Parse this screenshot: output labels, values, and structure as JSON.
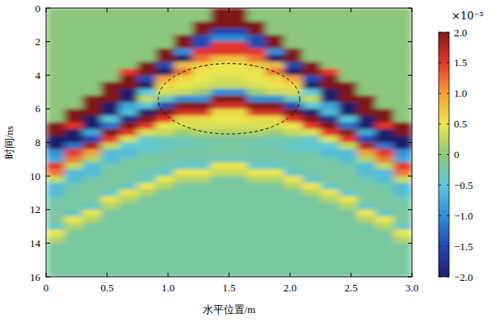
{
  "chart_data": {
    "type": "heatmap",
    "x_label": "水平位置/m",
    "y_label": "时间/ns",
    "xlim": [
      0,
      3
    ],
    "ylim": [
      0,
      16
    ],
    "xticks": [
      0,
      0.5,
      {
        "value": 1,
        "label": "1.0"
      },
      1.5,
      {
        "value": 2,
        "label": "2.0"
      },
      2.5,
      {
        "value": 3,
        "label": "3.0"
      }
    ],
    "yticks": [
      0,
      2,
      4,
      6,
      8,
      10,
      12,
      14,
      16
    ],
    "color_range": [
      -2,
      2
    ],
    "color_ticks": [
      {
        "value": 2,
        "label": "2.0"
      },
      1.5,
      {
        "value": 1,
        "label": "1.0"
      },
      0.5,
      0,
      {
        "value": -0.5,
        "label": "−0.5"
      },
      {
        "value": -1,
        "label": "−1.0"
      },
      {
        "value": -1.5,
        "label": "−1.5"
      },
      {
        "value": -2,
        "label": "−2.0"
      }
    ],
    "color_unit": "×10⁻³",
    "annotation_ellipse": {
      "x": 1.5,
      "y": 5.4,
      "rx": 0.58,
      "ry": 2.1
    },
    "cells": [
      [
        0,
        0,
        0,
        0,
        0,
        0,
        0,
        0,
        0,
        2,
        2,
        0,
        0,
        0,
        0,
        0,
        0,
        0,
        0,
        0
      ],
      [
        0,
        0,
        0,
        0,
        0,
        0,
        0,
        0,
        0,
        2,
        2,
        0,
        0,
        0,
        0,
        0,
        0,
        0,
        0,
        0
      ],
      [
        0,
        0,
        0,
        0,
        0,
        0,
        0,
        0,
        2,
        2,
        2,
        2,
        0,
        0,
        0,
        0,
        0,
        0,
        0,
        0
      ],
      [
        0,
        0,
        0,
        0,
        0,
        0,
        0,
        0,
        2,
        -1.5,
        -1.5,
        2,
        0,
        0,
        0,
        0,
        0,
        0,
        0,
        0
      ],
      [
        0,
        0,
        0,
        0,
        0,
        0,
        0,
        2,
        -1.5,
        -1,
        -1,
        -1.5,
        2,
        0,
        0,
        0,
        0,
        0,
        0,
        0
      ],
      [
        0,
        0,
        0,
        0,
        0,
        0,
        0,
        2,
        -1.5,
        1.5,
        1.5,
        -1.5,
        2,
        0,
        0,
        0,
        0,
        0,
        0,
        0
      ],
      [
        0,
        0,
        0,
        0,
        0,
        0,
        2,
        -1,
        1.5,
        1.5,
        1.5,
        1.5,
        -1,
        2,
        0,
        0,
        0,
        0,
        0,
        0
      ],
      [
        0,
        0,
        0,
        0,
        0,
        0,
        2,
        -2,
        1.2,
        0.8,
        0.8,
        1.2,
        -2,
        2,
        0,
        0,
        0,
        0,
        0,
        0
      ],
      [
        0,
        0,
        0,
        0,
        0,
        2,
        -1.5,
        0.8,
        0.7,
        0.5,
        0.5,
        0.7,
        0.8,
        -1.5,
        2,
        0,
        0,
        0,
        0,
        0
      ],
      [
        0,
        0,
        0,
        0,
        1.5,
        2,
        -2,
        1.2,
        0.5,
        0.5,
        0.5,
        0.5,
        1.2,
        -2,
        2,
        1.5,
        0,
        0,
        0,
        0
      ],
      [
        0,
        0,
        0,
        0,
        2,
        -1.5,
        1,
        0.6,
        0.5,
        0.4,
        0.4,
        0.5,
        0.6,
        1,
        -1.5,
        2,
        0,
        0,
        0,
        0
      ],
      [
        0,
        0,
        0,
        2,
        2,
        -2,
        0.6,
        0.5,
        0.4,
        0.3,
        0.3,
        0.4,
        0.5,
        0.6,
        -2,
        2,
        2,
        0,
        0,
        0
      ],
      [
        0,
        0,
        0,
        2,
        -2,
        -0.5,
        0.4,
        0.3,
        0.1,
        -1,
        -1,
        0.1,
        0.3,
        0.4,
        -0.5,
        -2,
        2,
        0,
        0,
        0
      ],
      [
        0,
        0,
        2,
        2,
        -2,
        0.3,
        -0.3,
        -1,
        -1,
        2,
        2,
        -1,
        -1,
        -0.3,
        0.3,
        -2,
        2,
        2,
        0,
        0
      ],
      [
        0,
        0,
        2,
        -2,
        -0.8,
        -0.5,
        -1.5,
        2,
        2,
        1.6,
        1.6,
        2,
        2,
        -1.5,
        -0.5,
        -0.8,
        -2,
        2,
        0,
        0
      ],
      [
        0,
        2,
        2,
        -2,
        -0.6,
        -2,
        2,
        1.6,
        1.6,
        0.6,
        0.6,
        1.6,
        1.6,
        2,
        -2,
        -0.6,
        -2,
        2,
        2,
        0
      ],
      [
        0,
        2,
        -2,
        -0.5,
        -1.8,
        2,
        1.5,
        0.6,
        0.6,
        0.5,
        0.5,
        0.6,
        0.6,
        1.5,
        2,
        -1.8,
        -0.5,
        -2,
        2,
        0
      ],
      [
        2,
        1.5,
        -2,
        -1.2,
        2,
        1.5,
        0.5,
        0.4,
        0.4,
        0.4,
        0.4,
        0.4,
        0.4,
        0.5,
        1.5,
        2,
        -1.2,
        -2,
        1.5,
        2
      ],
      [
        2,
        -2,
        -0.8,
        2,
        1.5,
        0.4,
        0.3,
        0.1,
        0.2,
        0.2,
        0.2,
        0.2,
        0.1,
        0.3,
        0.4,
        1.5,
        2,
        -0.8,
        -2,
        2
      ],
      [
        -2,
        -2,
        -1.5,
        1.5,
        0.4,
        -0.4,
        -0.3,
        -0.3,
        -0.2,
        -0.2,
        -0.2,
        -0.2,
        -0.3,
        -0.3,
        -0.4,
        0.4,
        1.5,
        -1.5,
        -2,
        -2
      ],
      [
        -2,
        -1.2,
        1.8,
        0.3,
        -0.5,
        -0.5,
        -0.4,
        -0.3,
        -0.3,
        -0.2,
        -0.2,
        -0.3,
        -0.3,
        -0.4,
        -0.5,
        -0.5,
        0.3,
        1.8,
        -1.2,
        -2
      ],
      [
        -1,
        1.5,
        1,
        -0.6,
        -0.6,
        -0.3,
        -0.3,
        -0.2,
        -0.2,
        -0.2,
        -0.2,
        -0.2,
        -0.2,
        -0.3,
        -0.3,
        -0.6,
        -0.6,
        1,
        1.5,
        -1
      ],
      [
        -0.8,
        1.2,
        0.2,
        -0.6,
        -0.3,
        -0.2,
        -0.2,
        -0.3,
        -0.3,
        -0.3,
        -0.3,
        -0.3,
        -0.3,
        -0.2,
        -0.2,
        -0.3,
        -0.6,
        0.2,
        1.2,
        -0.8
      ],
      [
        1.5,
        0.3,
        -0.6,
        -0.3,
        -0.2,
        -0.2,
        -0.3,
        -0.4,
        -0.4,
        0.5,
        0.5,
        -0.4,
        -0.4,
        -0.3,
        -0.2,
        -0.2,
        -0.3,
        -0.6,
        0.3,
        1.5
      ],
      [
        1.2,
        -0.6,
        -0.6,
        -0.2,
        -0.2,
        -0.3,
        -0.4,
        0.5,
        0.5,
        0.3,
        0.3,
        0.5,
        0.5,
        -0.4,
        -0.3,
        -0.2,
        -0.2,
        -0.6,
        -0.6,
        1.2
      ],
      [
        0.3,
        -0.6,
        -0.3,
        -0.2,
        -0.2,
        -0.4,
        0.5,
        0.2,
        0.2,
        -0.2,
        -0.2,
        0.2,
        0.2,
        0.5,
        -0.4,
        -0.2,
        -0.2,
        -0.3,
        -0.6,
        0.3
      ],
      [
        -0.6,
        -0.3,
        -0.2,
        -0.2,
        -0.4,
        0.5,
        0.2,
        -0.2,
        -0.2,
        -0.2,
        -0.2,
        -0.2,
        -0.2,
        0.2,
        0.5,
        -0.4,
        -0.2,
        -0.2,
        -0.3,
        -0.6
      ],
      [
        -0.6,
        -0.2,
        -0.2,
        -0.4,
        0.5,
        0.2,
        -0.2,
        -0.2,
        -0.2,
        -0.2,
        -0.2,
        -0.2,
        -0.2,
        -0.2,
        0.2,
        0.5,
        -0.4,
        -0.2,
        -0.2,
        -0.6
      ],
      [
        -0.3,
        -0.2,
        -0.2,
        0.5,
        0.2,
        -0.2,
        -0.2,
        -0.2,
        -0.2,
        -0.2,
        -0.2,
        -0.2,
        -0.2,
        -0.2,
        -0.2,
        0.2,
        0.5,
        -0.2,
        -0.2,
        -0.3
      ],
      [
        -0.2,
        -0.2,
        -0.4,
        0.2,
        -0.2,
        -0.2,
        -0.2,
        -0.2,
        -0.2,
        -0.2,
        -0.2,
        -0.2,
        -0.2,
        -0.2,
        -0.2,
        -0.2,
        0.2,
        -0.4,
        -0.2,
        -0.2
      ],
      [
        -0.2,
        -0.4,
        0.5,
        -0.2,
        -0.2,
        -0.2,
        -0.2,
        -0.2,
        -0.2,
        -0.2,
        -0.2,
        -0.2,
        -0.2,
        -0.2,
        -0.2,
        -0.2,
        -0.2,
        0.5,
        -0.4,
        -0.2
      ],
      [
        -0.2,
        0.5,
        0.2,
        -0.2,
        -0.2,
        -0.2,
        -0.2,
        -0.2,
        -0.2,
        -0.2,
        -0.2,
        -0.2,
        -0.2,
        -0.2,
        -0.2,
        -0.2,
        -0.2,
        0.2,
        0.5,
        -0.2
      ],
      [
        -0.4,
        0.2,
        -0.2,
        -0.2,
        -0.2,
        -0.2,
        -0.2,
        -0.2,
        -0.2,
        -0.2,
        -0.2,
        -0.2,
        -0.2,
        -0.2,
        -0.2,
        -0.2,
        -0.2,
        -0.2,
        0.2,
        -0.4
      ],
      [
        0.5,
        -0.2,
        -0.2,
        -0.2,
        -0.2,
        -0.2,
        -0.2,
        -0.2,
        -0.2,
        -0.2,
        -0.2,
        -0.2,
        -0.2,
        -0.2,
        -0.2,
        -0.2,
        -0.2,
        -0.2,
        -0.2,
        0.5
      ],
      [
        0.2,
        -0.2,
        -0.2,
        -0.2,
        -0.2,
        -0.2,
        -0.2,
        -0.2,
        -0.2,
        -0.2,
        -0.2,
        -0.2,
        -0.2,
        -0.2,
        -0.2,
        -0.2,
        -0.2,
        -0.2,
        -0.2,
        0.2
      ],
      [
        -0.2,
        -0.2,
        -0.2,
        -0.2,
        -0.2,
        -0.2,
        -0.2,
        -0.2,
        -0.2,
        -0.2,
        -0.2,
        -0.2,
        -0.2,
        -0.2,
        -0.2,
        -0.2,
        -0.2,
        -0.2,
        -0.2,
        -0.2
      ],
      [
        -0.2,
        -0.2,
        -0.2,
        -0.2,
        -0.2,
        -0.2,
        -0.2,
        -0.2,
        -0.2,
        -0.2,
        -0.2,
        -0.2,
        -0.2,
        -0.2,
        -0.2,
        -0.2,
        -0.2,
        -0.2,
        -0.2,
        -0.2
      ],
      [
        -0.2,
        -0.2,
        -0.2,
        -0.2,
        -0.2,
        -0.2,
        -0.2,
        -0.2,
        -0.2,
        -0.2,
        -0.2,
        -0.2,
        -0.2,
        -0.2,
        -0.2,
        -0.2,
        -0.2,
        -0.2,
        -0.2,
        -0.2
      ],
      [
        -0.2,
        -0.2,
        -0.2,
        -0.2,
        -0.2,
        -0.2,
        -0.2,
        -0.2,
        -0.2,
        -0.2,
        -0.2,
        -0.2,
        -0.2,
        -0.2,
        -0.2,
        -0.2,
        -0.2,
        -0.2,
        -0.2,
        -0.2
      ],
      [
        -0.2,
        -0.2,
        -0.2,
        -0.2,
        -0.2,
        -0.2,
        -0.2,
        -0.2,
        -0.2,
        -0.2,
        -0.2,
        -0.2,
        -0.2,
        -0.2,
        -0.2,
        -0.2,
        -0.2,
        -0.2,
        -0.2,
        -0.2
      ]
    ]
  }
}
